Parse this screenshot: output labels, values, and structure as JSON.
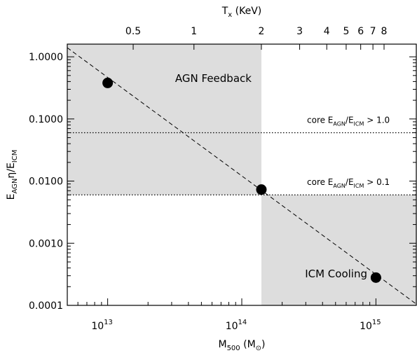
{
  "chart_data": {
    "type": "scatter",
    "x_scale": "log",
    "y_scale": "log",
    "xlim": [
      5000000000000.0,
      2000000000000000.0
    ],
    "ylim": [
      0.0001,
      1.6
    ],
    "xticks": [
      {
        "value": 10000000000000.0,
        "base": "10",
        "exp": "13"
      },
      {
        "value": 100000000000000.0,
        "base": "10",
        "exp": "14"
      },
      {
        "value": 1000000000000000.0,
        "base": "10",
        "exp": "15"
      }
    ],
    "yticks": [
      {
        "value": 1.0,
        "label": "1.0000"
      },
      {
        "value": 0.1,
        "label": "0.1000"
      },
      {
        "value": 0.01,
        "label": "0.0100"
      },
      {
        "value": 0.001,
        "label": "0.0010"
      },
      {
        "value": 0.0001,
        "label": "0.0001"
      }
    ],
    "xlabel": {
      "main": "M",
      "sub": "500",
      "unit_open": " (M",
      "unit_sub": "⊙",
      "unit_close": ")"
    },
    "ylabel": {
      "p1": "E",
      "s1": "AGN",
      "p2": "η/E",
      "s2": "ICM"
    },
    "top_axis": {
      "label": {
        "main": "T",
        "sub": "x",
        "rest": " (KeV)"
      },
      "ticks": [
        {
          "label": "0.5",
          "mass": 15500000000000.0
        },
        {
          "label": "1",
          "mass": 44000000000000.0
        },
        {
          "label": "2",
          "mass": 140000000000000.0
        },
        {
          "label": "3",
          "mass": 270000000000000.0
        },
        {
          "label": "4",
          "mass": 430000000000000.0
        },
        {
          "label": "5",
          "mass": 600000000000000.0
        },
        {
          "label": "6",
          "mass": 770000000000000.0
        },
        {
          "label": "7",
          "mass": 950000000000000.0
        },
        {
          "label": "8",
          "mass": 1150000000000000.0
        }
      ]
    },
    "points": [
      {
        "x": 10000000000000.0,
        "y": 0.38
      },
      {
        "x": 140000000000000.0,
        "y": 0.0073
      },
      {
        "x": 1000000000000000.0,
        "y": 0.00028
      }
    ],
    "fit_line": {
      "x": [
        5000000000000.0,
        2000000000000000.0
      ],
      "y": [
        1.4,
        0.000105
      ]
    },
    "regions": [
      {
        "label": "AGN Feedback",
        "x": [
          5000000000000.0,
          140000000000000.0
        ],
        "y": [
          0.006,
          1.6
        ],
        "color": "#dddddd"
      },
      {
        "label": "ICM Cooling",
        "x": [
          140000000000000.0,
          2000000000000000.0
        ],
        "y": [
          0.0001,
          0.006
        ],
        "color": "#dddddd"
      }
    ],
    "thresholds": [
      {
        "y": 0.06,
        "text": {
          "a": "core E",
          "as": "AGN",
          "b": "/E",
          "bs": "ICM",
          "c": " > 1.0"
        }
      },
      {
        "y": 0.006,
        "text": {
          "a": "core E",
          "as": "AGN",
          "b": "/E",
          "bs": "ICM",
          "c": " > 0.1"
        }
      }
    ]
  }
}
